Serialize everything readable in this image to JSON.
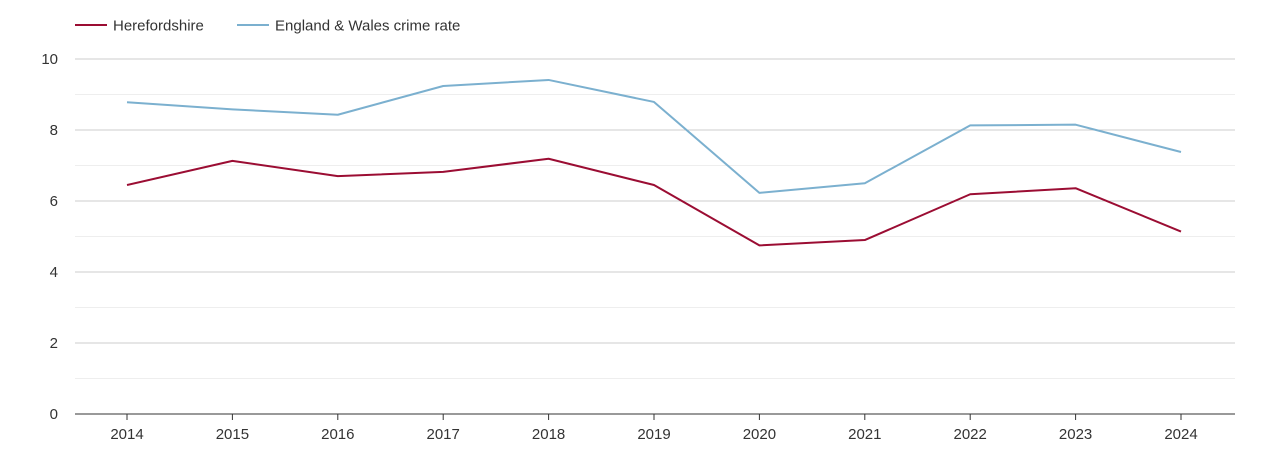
{
  "chart_data": {
    "type": "line",
    "title": "",
    "xlabel": "",
    "ylabel": "",
    "categories": [
      "2014",
      "2015",
      "2016",
      "2017",
      "2018",
      "2019",
      "2020",
      "2021",
      "2022",
      "2023",
      "2024"
    ],
    "series": [
      {
        "name": "Herefordshire",
        "color": "#9b0d33",
        "values": [
          6.45,
          7.13,
          6.7,
          6.82,
          7.19,
          6.45,
          4.75,
          4.9,
          6.19,
          6.36,
          5.14
        ]
      },
      {
        "name": "England & Wales crime rate",
        "color": "#7bb0cf",
        "values": [
          8.78,
          8.58,
          8.43,
          9.24,
          9.41,
          8.79,
          6.23,
          6.5,
          8.13,
          8.15,
          7.38
        ]
      }
    ],
    "ylim": [
      0,
      10
    ],
    "yticks": [
      0,
      2,
      4,
      6,
      8,
      10
    ],
    "minor_yticks": [
      1,
      3,
      5,
      7,
      9
    ],
    "grid": true,
    "legend_position": "top-left"
  }
}
